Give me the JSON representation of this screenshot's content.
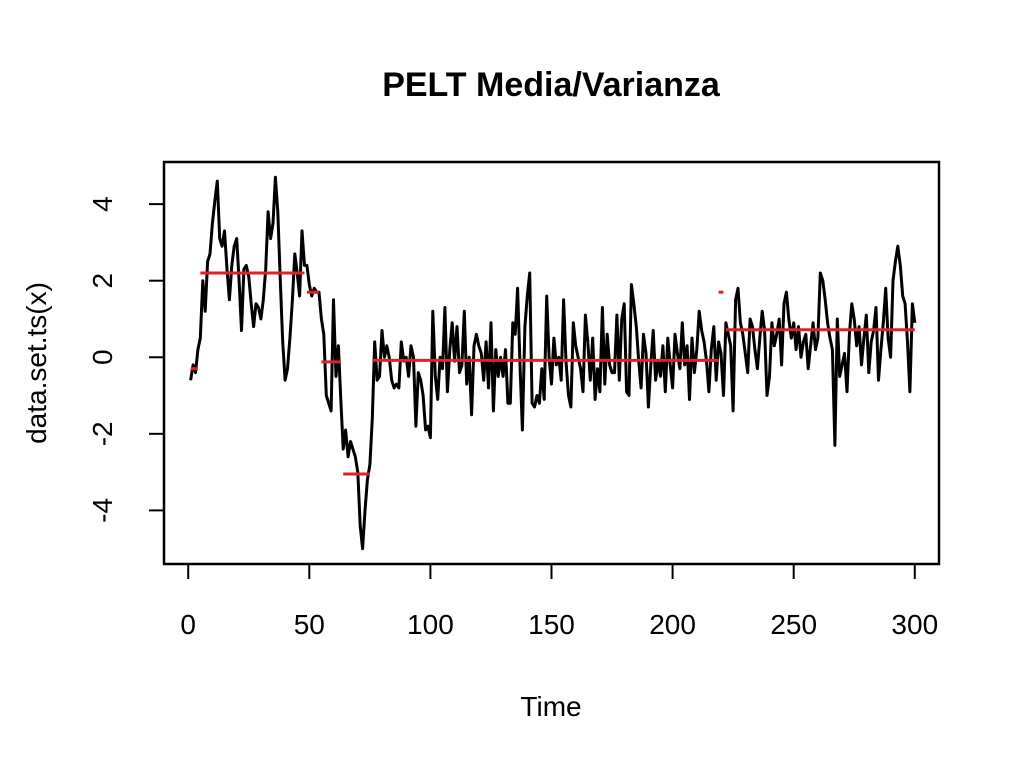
{
  "chart_data": {
    "type": "line",
    "title": "PELT Media/Varianza",
    "xlabel": "Time",
    "ylabel": "data.set.ts(x)",
    "xlim": [
      -10,
      310
    ],
    "ylim": [
      -5.4,
      5.1
    ],
    "x_ticks": [
      0,
      50,
      100,
      150,
      200,
      250,
      300
    ],
    "y_ticks": [
      -4,
      -2,
      0,
      2,
      4
    ],
    "grid": false,
    "legend": "none",
    "colors": {
      "series": "#000000",
      "segments": "#e0202a",
      "frame": "#000000"
    },
    "series": [
      {
        "x_start": 1,
        "x_step": 1,
        "values": [
          -0.6,
          -0.2,
          -0.4,
          0.2,
          0.5,
          2.0,
          1.2,
          2.5,
          2.7,
          3.5,
          4.1,
          4.6,
          3.1,
          2.9,
          3.3,
          2.3,
          1.5,
          2.4,
          2.9,
          3.1,
          2.0,
          0.7,
          2.3,
          2.4,
          2.1,
          1.4,
          0.8,
          1.4,
          1.3,
          1.0,
          1.5,
          2.3,
          3.8,
          3.1,
          3.5,
          4.7,
          3.8,
          2.0,
          0.4,
          -0.6,
          -0.3,
          0.5,
          1.5,
          2.7,
          2.2,
          1.6,
          3.3,
          2.4,
          2.4,
          1.9,
          1.6,
          1.8,
          1.7,
          1.7,
          1.0,
          0.6,
          -1.0,
          -1.2,
          -1.4,
          1.5,
          -0.5,
          0.3,
          -1.1,
          -2.4,
          -1.9,
          -2.6,
          -2.2,
          -2.4,
          -2.6,
          -3.0,
          -4.4,
          -5.0,
          -4.0,
          -3.2,
          -2.8,
          -1.6,
          0.4,
          -0.6,
          -0.5,
          0.7,
          0.0,
          0.3,
          0.0,
          -0.6,
          -0.8,
          -0.7,
          -0.8,
          0.4,
          -0.1,
          0.0,
          -0.5,
          0.3,
          0.0,
          -1.8,
          -0.4,
          -0.6,
          -1.0,
          -1.9,
          -1.8,
          -2.1,
          1.2,
          -0.5,
          -1.1,
          0.0,
          -0.3,
          1.3,
          -0.9,
          0.2,
          0.9,
          -0.1,
          0.8,
          -0.4,
          -0.2,
          1.2,
          -0.7,
          0.0,
          -1.5,
          0.3,
          0.6,
          0.3,
          0.1,
          -0.6,
          0.4,
          -0.8,
          0.9,
          -1.4,
          0.2,
          -0.5,
          0.0,
          -0.5,
          0.2,
          -1.2,
          -1.2,
          0.9,
          0.6,
          1.8,
          -0.2,
          -1.9,
          0.8,
          1.6,
          2.2,
          -1.2,
          -1.3,
          -1.0,
          -1.2,
          -0.3,
          -1.1,
          1.6,
          0.0,
          -0.7,
          0.5,
          -0.2,
          0.0,
          -0.6,
          1.5,
          -0.1,
          -1.0,
          -1.3,
          0.9,
          0.3,
          0.0,
          -0.3,
          -0.9,
          1.1,
          0.4,
          -0.6,
          0.5,
          -1.1,
          -0.3,
          -0.9,
          1.3,
          -0.7,
          0.6,
          -0.2,
          -0.4,
          -0.4,
          1.1,
          -0.6,
          1.0,
          1.4,
          -0.9,
          -1.0,
          1.9,
          1.4,
          0.8,
          -0.1,
          -0.8,
          0.6,
          0.1,
          -1.3,
          -0.2,
          0.7,
          -0.6,
          -0.1,
          -0.5,
          0.3,
          -0.9,
          0.5,
          -0.2,
          -0.8,
          0.6,
          0.1,
          -0.3,
          0.9,
          -0.2,
          0.3,
          -1.1,
          0.5,
          -0.4,
          0.2,
          1.2,
          0.7,
          0.4,
          -0.1,
          -0.9,
          0.2,
          0.8,
          -0.6,
          0.4,
          0.1,
          -1.0,
          0.9,
          0.6,
          0.3,
          -1.4,
          1.5,
          1.8,
          0.9,
          0.6,
          0.1,
          -0.4,
          1.0,
          0.8,
          0.2,
          -0.3,
          0.5,
          1.2,
          0.7,
          -1.0,
          -0.5,
          0.9,
          0.3,
          0.6,
          1.0,
          -0.2,
          1.4,
          1.7,
          1.0,
          0.5,
          0.9,
          0.2,
          0.8,
          0.0,
          0.4,
          0.6,
          -0.3,
          0.3,
          0.9,
          0.2,
          0.5,
          2.2,
          2.0,
          1.5,
          0.9,
          0.5,
          0.2,
          -2.3,
          1.0,
          -0.5,
          -0.2,
          0.1,
          -0.9,
          0.6,
          1.4,
          1.0,
          0.3,
          0.8,
          -0.2,
          0.5,
          1.1,
          -0.4,
          0.4,
          0.7,
          1.3,
          -0.6,
          0.2,
          0.9,
          1.8,
          0.5,
          0.0,
          2.0,
          2.5,
          2.9,
          2.4,
          1.6,
          1.4,
          0.4,
          -0.9,
          1.4,
          0.9
        ]
      }
    ],
    "segments": [
      {
        "x_start": 1,
        "x_end": 4,
        "mean": -0.3
      },
      {
        "x_start": 5,
        "x_end": 48,
        "mean": 2.2
      },
      {
        "x_start": 49,
        "x_end": 54,
        "mean": 1.7
      },
      {
        "x_start": 55,
        "x_end": 63,
        "mean": -0.12
      },
      {
        "x_start": 64,
        "x_end": 75,
        "mean": -3.05
      },
      {
        "x_start": 76,
        "x_end": 219,
        "mean": -0.08
      },
      {
        "x_start": 219,
        "x_end": 221,
        "mean": 1.7
      },
      {
        "x_start": 222,
        "x_end": 300,
        "mean": 0.72
      }
    ]
  }
}
